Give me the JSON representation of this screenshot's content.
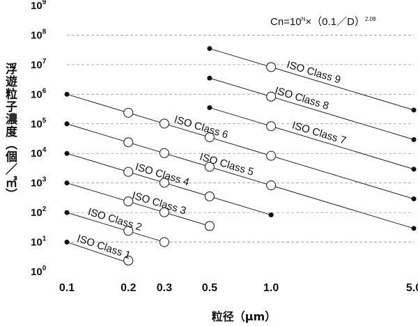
{
  "chart_data": {
    "type": "line",
    "title": "",
    "formula": {
      "text": "Cn=10",
      "exp_n": "N",
      "mid": "×（0.1／D）",
      "exp_power": "2.08"
    },
    "xlabel": "粒径（μm）",
    "ylabel": "浮遊粒子濃度（個／㎥）",
    "x_scale": "log",
    "y_scale": "log",
    "xlim": [
      0.1,
      5.0
    ],
    "ylim": [
      1,
      1000000000
    ],
    "x_ticks": [
      {
        "value": 0.1,
        "label": "0.1"
      },
      {
        "value": 0.2,
        "label": "0.2"
      },
      {
        "value": 0.3,
        "label": "0.3"
      },
      {
        "value": 0.5,
        "label": "0.5"
      },
      {
        "value": 1.0,
        "label": "1.0"
      },
      {
        "value": 5.0,
        "label": "5.0"
      }
    ],
    "y_ticks": [
      {
        "exp": 0,
        "base": "10",
        "sup": "0"
      },
      {
        "exp": 1,
        "base": "10",
        "sup": "1"
      },
      {
        "exp": 2,
        "base": "10",
        "sup": "2"
      },
      {
        "exp": 3,
        "base": "10",
        "sup": "3"
      },
      {
        "exp": 4,
        "base": "10",
        "sup": "4"
      },
      {
        "exp": 5,
        "base": "10",
        "sup": "5"
      },
      {
        "exp": 6,
        "base": "10",
        "sup": "6"
      },
      {
        "exp": 7,
        "base": "10",
        "sup": "7"
      },
      {
        "exp": 8,
        "base": "10",
        "sup": "8"
      },
      {
        "exp": 9,
        "base": "10",
        "sup": "9"
      }
    ],
    "gridlines": "horizontal-dashed",
    "legend": "none",
    "series": [
      {
        "name": "ISO Class 1",
        "class_n": 1,
        "x_range": [
          0.1,
          0.2
        ],
        "endpoint_values": [
          10,
          2
        ],
        "open_points": [
          {
            "x": 0.2,
            "y": 2.37
          }
        ],
        "label_x": 0.15
      },
      {
        "name": "ISO Class 2",
        "class_n": 2,
        "x_range": [
          0.1,
          0.3
        ],
        "endpoint_values": [
          100,
          10
        ],
        "open_points": [
          {
            "x": 0.2,
            "y": 24
          },
          {
            "x": 0.3,
            "y": 10
          }
        ],
        "label_x": 0.17
      },
      {
        "name": "ISO Class 3",
        "class_n": 3,
        "x_range": [
          0.1,
          0.5
        ],
        "endpoint_values": [
          1000,
          35
        ],
        "open_points": [
          {
            "x": 0.2,
            "y": 237
          },
          {
            "x": 0.3,
            "y": 102
          },
          {
            "x": 0.5,
            "y": 35
          }
        ],
        "label_x": 0.28
      },
      {
        "name": "ISO Class 4",
        "class_n": 4,
        "x_range": [
          0.1,
          1.0
        ],
        "endpoint_values": [
          10000,
          83
        ],
        "open_points": [
          {
            "x": 0.2,
            "y": 2370
          },
          {
            "x": 0.3,
            "y": 1020
          },
          {
            "x": 0.5,
            "y": 352
          }
        ],
        "label_x": 0.29
      },
      {
        "name": "ISO Class 5",
        "class_n": 5,
        "x_range": [
          0.1,
          5.0
        ],
        "endpoint_values": [
          100000,
          29
        ],
        "open_points": [
          {
            "x": 0.2,
            "y": 23700
          },
          {
            "x": 0.3,
            "y": 10200
          },
          {
            "x": 0.5,
            "y": 3520
          },
          {
            "x": 1.0,
            "y": 832
          }
        ],
        "label_x": 0.6
      },
      {
        "name": "ISO Class 6",
        "class_n": 6,
        "x_range": [
          0.1,
          5.0
        ],
        "endpoint_values": [
          1000000,
          290
        ],
        "open_points": [
          {
            "x": 0.2,
            "y": 237000
          },
          {
            "x": 0.3,
            "y": 102000
          },
          {
            "x": 0.5,
            "y": 35200
          },
          {
            "x": 1.0,
            "y": 8320
          }
        ],
        "label_x": 0.45
      },
      {
        "name": "ISO Class 7",
        "class_n": 7,
        "x_range": [
          0.5,
          5.0
        ],
        "endpoint_values": [
          352000,
          2930
        ],
        "open_points": [
          {
            "x": 1.0,
            "y": 83200
          }
        ],
        "label_x": 1.7
      },
      {
        "name": "ISO Class 8",
        "class_n": 8,
        "x_range": [
          0.5,
          5.0
        ],
        "endpoint_values": [
          3520000,
          29300
        ],
        "open_points": [
          {
            "x": 1.0,
            "y": 832000
          }
        ],
        "label_x": 1.4
      },
      {
        "name": "ISO Class 9",
        "class_n": 9,
        "x_range": [
          0.5,
          5.0
        ],
        "endpoint_values": [
          35200000,
          293000
        ],
        "open_points": [
          {
            "x": 1.0,
            "y": 8320000
          }
        ],
        "label_x": 1.6
      }
    ]
  }
}
